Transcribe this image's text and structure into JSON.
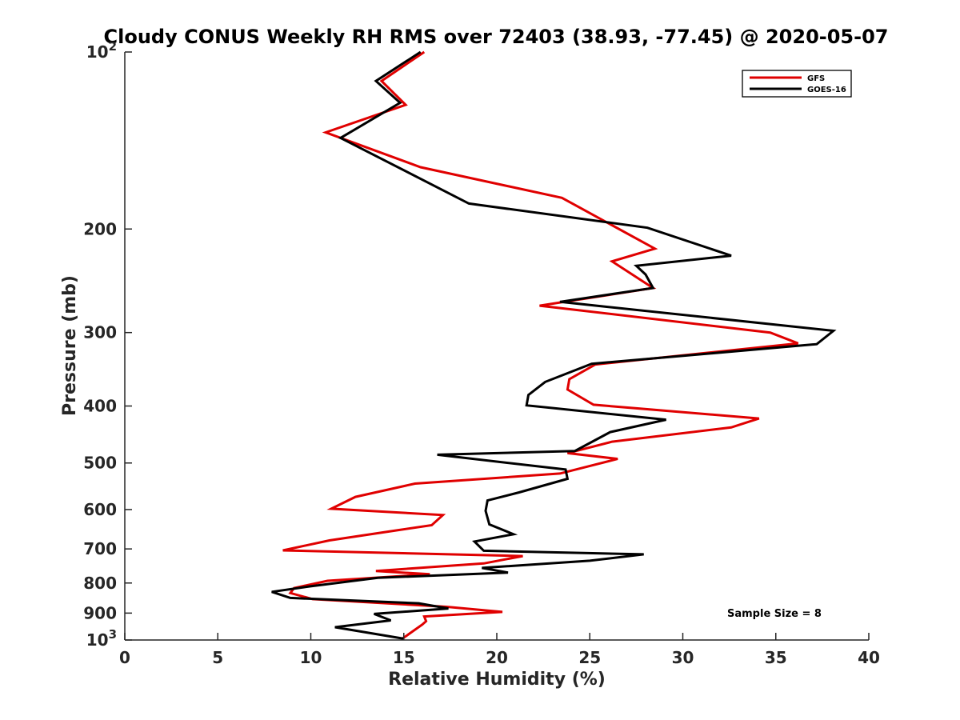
{
  "chart_data": {
    "type": "line",
    "title": "Cloudy CONUS Weekly RH RMS over 72403 (38.93, -77.45) @ 2020-05-07",
    "xlabel": "Relative Humidity (%)",
    "ylabel": "Pressure (mb)",
    "xlim": [
      0,
      40
    ],
    "ylim": [
      100,
      1000
    ],
    "y_scale": "log",
    "y_reversed": true,
    "x_ticks": [
      0,
      5,
      10,
      15,
      20,
      25,
      30,
      35,
      40
    ],
    "y_ticks": [
      {
        "value": 100,
        "base": "10",
        "exp": "2"
      },
      {
        "value": 200,
        "label": "200"
      },
      {
        "value": 300,
        "label": "300"
      },
      {
        "value": 400,
        "label": "400"
      },
      {
        "value": 500,
        "label": "500"
      },
      {
        "value": 600,
        "label": "600"
      },
      {
        "value": 700,
        "label": "700"
      },
      {
        "value": 800,
        "label": "800"
      },
      {
        "value": 900,
        "label": "900"
      },
      {
        "value": 1000,
        "base": "10",
        "exp": "3"
      }
    ],
    "grid": false,
    "legend_position": "top-right",
    "annotation": "Sample Size = 8",
    "series": [
      {
        "name": "GFS",
        "color": "#e00000",
        "x": [
          16.1,
          13.8,
          15.1,
          10.8,
          15.9,
          23.5,
          28.5,
          26.2,
          28.4,
          22.3,
          34.7,
          36.2,
          25.3,
          23.9,
          23.8,
          25.2,
          34.1,
          32.6,
          26.2,
          23.8,
          26.5,
          23.4,
          15.6,
          12.4,
          11.1,
          17.1,
          16.5,
          14.6,
          11.0,
          8.5,
          21.4,
          19.3,
          13.5,
          16.4,
          10.9,
          9.1,
          8.9,
          10.1,
          17.3,
          20.3,
          16.1,
          16.2,
          16.0,
          14.9
        ],
        "y": [
          100,
          112,
          123,
          137,
          157,
          177,
          216,
          227,
          252,
          270,
          300,
          313,
          340,
          360,
          375,
          398,
          420,
          435,
          460,
          481,
          492,
          521,
          542,
          571,
          598,
          613,
          638,
          651,
          677,
          704,
          720,
          741,
          763,
          773,
          793,
          816,
          832,
          852,
          878,
          896,
          912,
          929,
          941,
          996
        ]
      },
      {
        "name": "GOES-16",
        "color": "#000000",
        "x": [
          15.9,
          13.5,
          14.8,
          11.6,
          18.5,
          28.1,
          32.6,
          27.5,
          28.0,
          28.4,
          23.4,
          38.1,
          37.2,
          25.1,
          22.6,
          21.7,
          21.6,
          29.1,
          26.1,
          24.2,
          16.8,
          23.7,
          23.8,
          21.2,
          19.5,
          19.4,
          19.6,
          20.9,
          18.8,
          19.3,
          27.9,
          25.0,
          19.2,
          20.6,
          13.6,
          9.9,
          7.9,
          8.9,
          15.8,
          17.4,
          13.4,
          14.3,
          11.3,
          15.0
        ],
        "y": [
          100,
          112,
          122,
          140,
          181,
          199,
          222,
          231,
          239,
          252,
          266,
          298,
          314,
          339,
          364,
          383,
          399,
          422,
          443,
          477,
          484,
          513,
          532,
          561,
          579,
          603,
          636,
          661,
          680,
          705,
          715,
          733,
          754,
          768,
          784,
          811,
          828,
          848,
          866,
          884,
          903,
          926,
          951,
          995
        ]
      }
    ]
  }
}
